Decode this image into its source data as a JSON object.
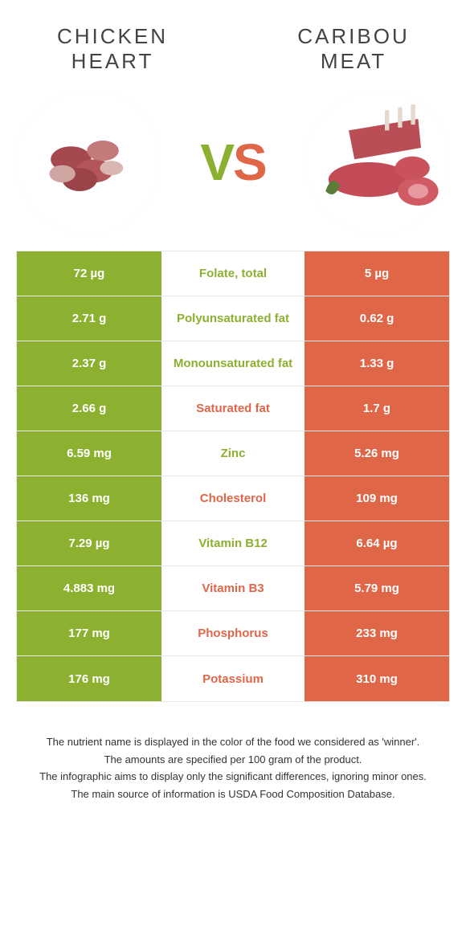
{
  "left": {
    "title_l1": "CHICKEN",
    "title_l2": "HEART",
    "color": "#8cb02f"
  },
  "right": {
    "title_l1": "CARIBOU",
    "title_l2": "MEAT",
    "color": "#e06648"
  },
  "vs_v": "V",
  "vs_s": "S",
  "rows": [
    {
      "label": "Folate, total",
      "left": "72 µg",
      "right": "5 µg",
      "winner": "left"
    },
    {
      "label": "Polyunsaturated fat",
      "left": "2.71 g",
      "right": "0.62 g",
      "winner": "left"
    },
    {
      "label": "Monounsaturated fat",
      "left": "2.37 g",
      "right": "1.33 g",
      "winner": "left"
    },
    {
      "label": "Saturated fat",
      "left": "2.66 g",
      "right": "1.7 g",
      "winner": "right"
    },
    {
      "label": "Zinc",
      "left": "6.59 mg",
      "right": "5.26 mg",
      "winner": "left"
    },
    {
      "label": "Cholesterol",
      "left": "136 mg",
      "right": "109 mg",
      "winner": "right"
    },
    {
      "label": "Vitamin B12",
      "left": "7.29 µg",
      "right": "6.64 µg",
      "winner": "left"
    },
    {
      "label": "Vitamin B3",
      "left": "4.883 mg",
      "right": "5.79 mg",
      "winner": "right"
    },
    {
      "label": "Phosphorus",
      "left": "177 mg",
      "right": "233 mg",
      "winner": "right"
    },
    {
      "label": "Potassium",
      "left": "176 mg",
      "right": "310 mg",
      "winner": "right"
    }
  ],
  "foot1": "The nutrient name is displayed in the color of the food we considered as 'winner'.",
  "foot2": "The amounts are specified per 100 gram of the product.",
  "foot3": "The infographic aims to display only the significant differences, ignoring minor ones.",
  "foot4": "The main source of information is USDA Food Composition Database."
}
